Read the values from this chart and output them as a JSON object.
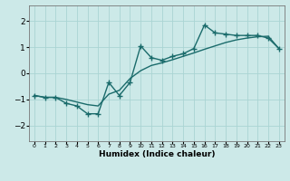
{
  "title": "",
  "xlabel": "Humidex (Indice chaleur)",
  "ylabel": "",
  "xlim": [
    -0.5,
    23.5
  ],
  "ylim": [
    -2.6,
    2.6
  ],
  "xticks": [
    0,
    1,
    2,
    3,
    4,
    5,
    6,
    7,
    8,
    9,
    10,
    11,
    12,
    13,
    14,
    15,
    16,
    17,
    18,
    19,
    20,
    21,
    22,
    23
  ],
  "yticks": [
    -2,
    -1,
    0,
    1,
    2
  ],
  "bg_color": "#cce9e8",
  "grid_color": "#aad4d3",
  "line_color": "#1a6b6b",
  "data_x": [
    0,
    1,
    2,
    3,
    4,
    5,
    6,
    7,
    8,
    9,
    10,
    11,
    12,
    13,
    14,
    15,
    16,
    17,
    18,
    19,
    20,
    21,
    22,
    23
  ],
  "data_y1": [
    -0.85,
    -0.92,
    -0.92,
    -1.15,
    -1.25,
    -1.55,
    -1.55,
    -0.35,
    -0.85,
    -0.35,
    1.05,
    0.6,
    0.5,
    0.65,
    0.75,
    0.95,
    1.85,
    1.55,
    1.5,
    1.45,
    1.45,
    1.45,
    1.35,
    0.95
  ],
  "data_y2": [
    -0.85,
    -0.92,
    -0.92,
    -1.0,
    -1.1,
    -1.2,
    -1.25,
    -0.8,
    -0.65,
    -0.2,
    0.1,
    0.3,
    0.4,
    0.52,
    0.65,
    0.78,
    0.92,
    1.05,
    1.18,
    1.28,
    1.35,
    1.4,
    1.42,
    0.95
  ],
  "marker": "+",
  "markersize": 4,
  "linewidth": 1.0
}
